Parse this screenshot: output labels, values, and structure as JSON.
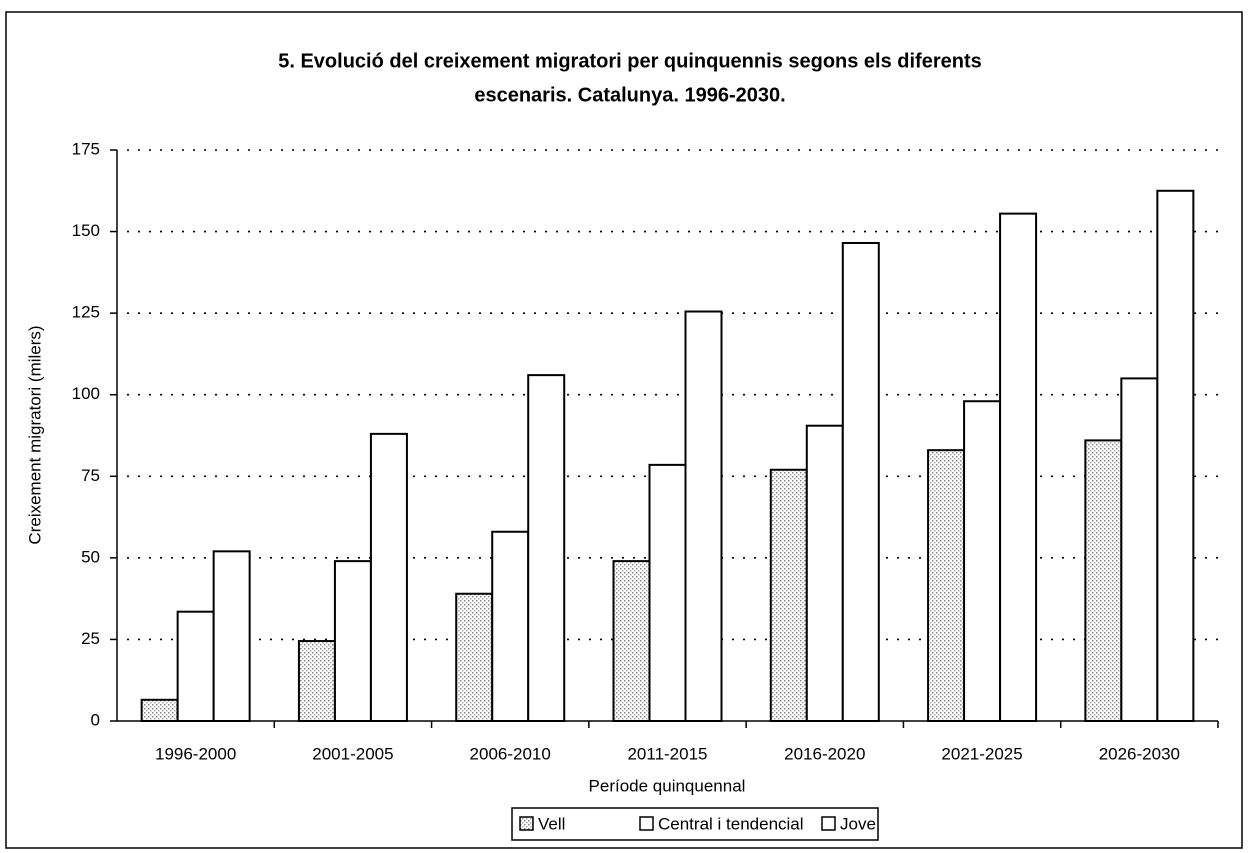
{
  "chart_data": {
    "type": "bar",
    "title": [
      "5. Evolució del creixement migratori per quinquennis segons els diferents",
      "escenaris. Catalunya. 1996-2030."
    ],
    "y_label": "Creixement migratori (milers)",
    "x_label": "Període quinquennal",
    "categories": [
      "1996-2000",
      "2001-2005",
      "2006-2010",
      "2011-2015",
      "2016-2020",
      "2021-2025",
      "2026-2030"
    ],
    "series": [
      {
        "name": "Vell",
        "color": "#d8d8d8",
        "values": [
          6.5,
          24.5,
          39,
          49,
          77,
          83,
          86
        ]
      },
      {
        "name": "Central i tendencial",
        "color": "#ffffff",
        "values": [
          33.5,
          49,
          58,
          78.5,
          90.5,
          98,
          105
        ]
      },
      {
        "name": "Jove",
        "color": "#ffffff",
        "values": [
          52,
          88,
          106,
          125.5,
          146.5,
          155.5,
          162.5
        ]
      }
    ],
    "ylim": [
      0,
      175
    ],
    "yticks": [
      0,
      25,
      50,
      75,
      100,
      125,
      150,
      175
    ],
    "grid": true,
    "legend": "bottom"
  }
}
